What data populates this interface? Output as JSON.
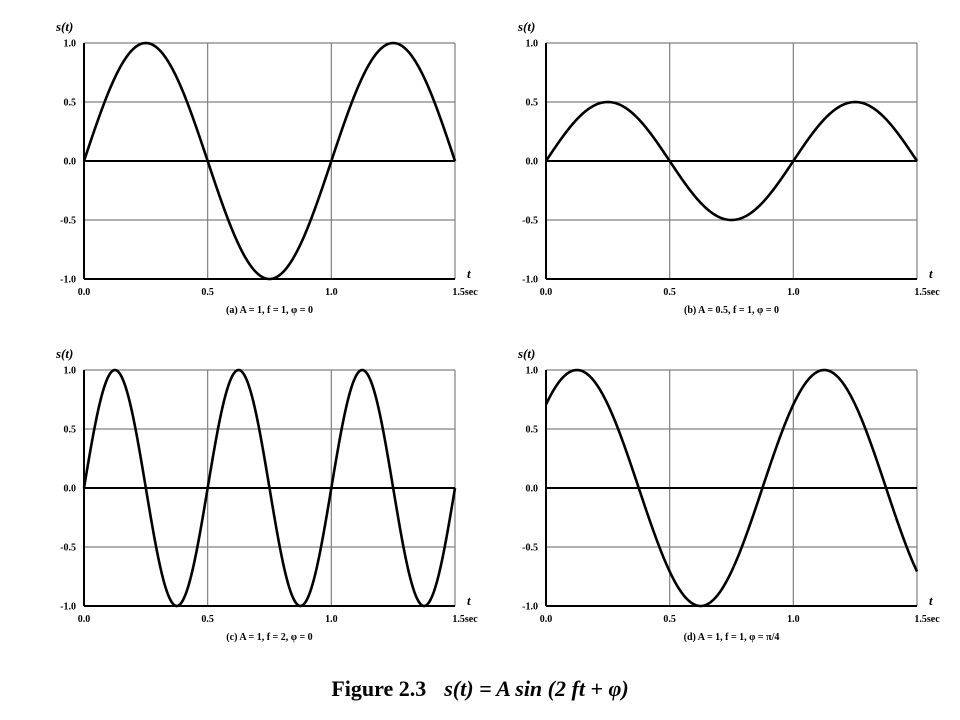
{
  "figure": {
    "title": "Figure 2.3",
    "equation": "s(t) = A sin (2  ft + φ)"
  },
  "chart_data": [
    {
      "type": "line",
      "panel": "a",
      "caption": "(a) A = 1, f = 1, φ = 0",
      "ylabel": "s(t)",
      "xlabel": "t",
      "xlim": [
        0,
        1.5
      ],
      "ylim": [
        -1,
        1
      ],
      "xticks": [
        "0.0",
        "0.5",
        "1.0",
        "1.5sec"
      ],
      "yticks": [
        "1.0",
        "0.5",
        "0.0",
        "-0.5",
        "-1.0"
      ],
      "grid": true,
      "function": "A*sin(2*pi*f*t + phi)",
      "params": {
        "A": 1,
        "f": 1,
        "phi": 0
      },
      "series": [
        {
          "x": [
            0,
            0.125,
            0.25,
            0.375,
            0.5,
            0.625,
            0.75,
            0.875,
            1.0,
            1.125,
            1.25,
            1.375,
            1.5
          ],
          "y": [
            0,
            0.707,
            1,
            0.707,
            0,
            -0.707,
            -1,
            -0.707,
            0,
            0.707,
            1,
            0.707,
            0
          ]
        }
      ]
    },
    {
      "type": "line",
      "panel": "b",
      "caption": "(b) A = 0.5, f = 1, φ = 0",
      "ylabel": "s(t)",
      "xlabel": "t",
      "xlim": [
        0,
        1.5
      ],
      "ylim": [
        -1,
        1
      ],
      "xticks": [
        "0.0",
        "0.5",
        "1.0",
        "1.5sec"
      ],
      "yticks": [
        "1.0",
        "0.5",
        "0.0",
        "-0.5",
        "-1.0"
      ],
      "grid": true,
      "function": "A*sin(2*pi*f*t + phi)",
      "params": {
        "A": 0.5,
        "f": 1,
        "phi": 0
      },
      "series": [
        {
          "x": [
            0,
            0.125,
            0.25,
            0.375,
            0.5,
            0.625,
            0.75,
            0.875,
            1.0,
            1.125,
            1.25,
            1.375,
            1.5
          ],
          "y": [
            0,
            0.354,
            0.5,
            0.354,
            0,
            -0.354,
            -0.5,
            -0.354,
            0,
            0.354,
            0.5,
            0.354,
            0
          ]
        }
      ]
    },
    {
      "type": "line",
      "panel": "c",
      "caption": "(c) A = 1, f = 2, φ = 0",
      "ylabel": "s(t)",
      "xlabel": "t",
      "xlim": [
        0,
        1.5
      ],
      "ylim": [
        -1,
        1
      ],
      "xticks": [
        "0.0",
        "0.5",
        "1.0",
        "1.5sec"
      ],
      "yticks": [
        "1.0",
        "0.5",
        "0.0",
        "-0.5",
        "-1.0"
      ],
      "grid": true,
      "function": "A*sin(2*pi*f*t + phi)",
      "params": {
        "A": 1,
        "f": 2,
        "phi": 0
      },
      "series": [
        {
          "x": [
            0,
            0.125,
            0.25,
            0.375,
            0.5,
            0.625,
            0.75,
            0.875,
            1.0,
            1.125,
            1.25,
            1.375,
            1.5
          ],
          "y": [
            0,
            1,
            0,
            -1,
            0,
            1,
            0,
            -1,
            0,
            1,
            0,
            -1,
            0
          ]
        }
      ]
    },
    {
      "type": "line",
      "panel": "d",
      "caption": "(d) A = 1, f = 1, φ = π/4",
      "ylabel": "s(t)",
      "xlabel": "t",
      "xlim": [
        0,
        1.5
      ],
      "ylim": [
        -1,
        1
      ],
      "xticks": [
        "0.0",
        "0.5",
        "1.0",
        "1.5sec"
      ],
      "yticks": [
        "1.0",
        "0.5",
        "0.0",
        "-0.5",
        "-1.0"
      ],
      "grid": true,
      "function": "A*sin(2*pi*f*t + phi)",
      "params": {
        "A": 1,
        "f": 1,
        "phi": 0.7854
      },
      "series": [
        {
          "x": [
            0,
            0.125,
            0.25,
            0.375,
            0.5,
            0.625,
            0.75,
            0.875,
            1.0,
            1.125,
            1.25,
            1.375,
            1.5
          ],
          "y": [
            0.707,
            1,
            0.707,
            0,
            -0.707,
            -1,
            -0.707,
            0,
            0.707,
            1,
            0.707,
            0,
            -0.707
          ]
        }
      ]
    }
  ],
  "colors": {
    "curve": "#000000",
    "grid": "#808080",
    "zero_line": "#000000",
    "background": "#ffffff"
  }
}
